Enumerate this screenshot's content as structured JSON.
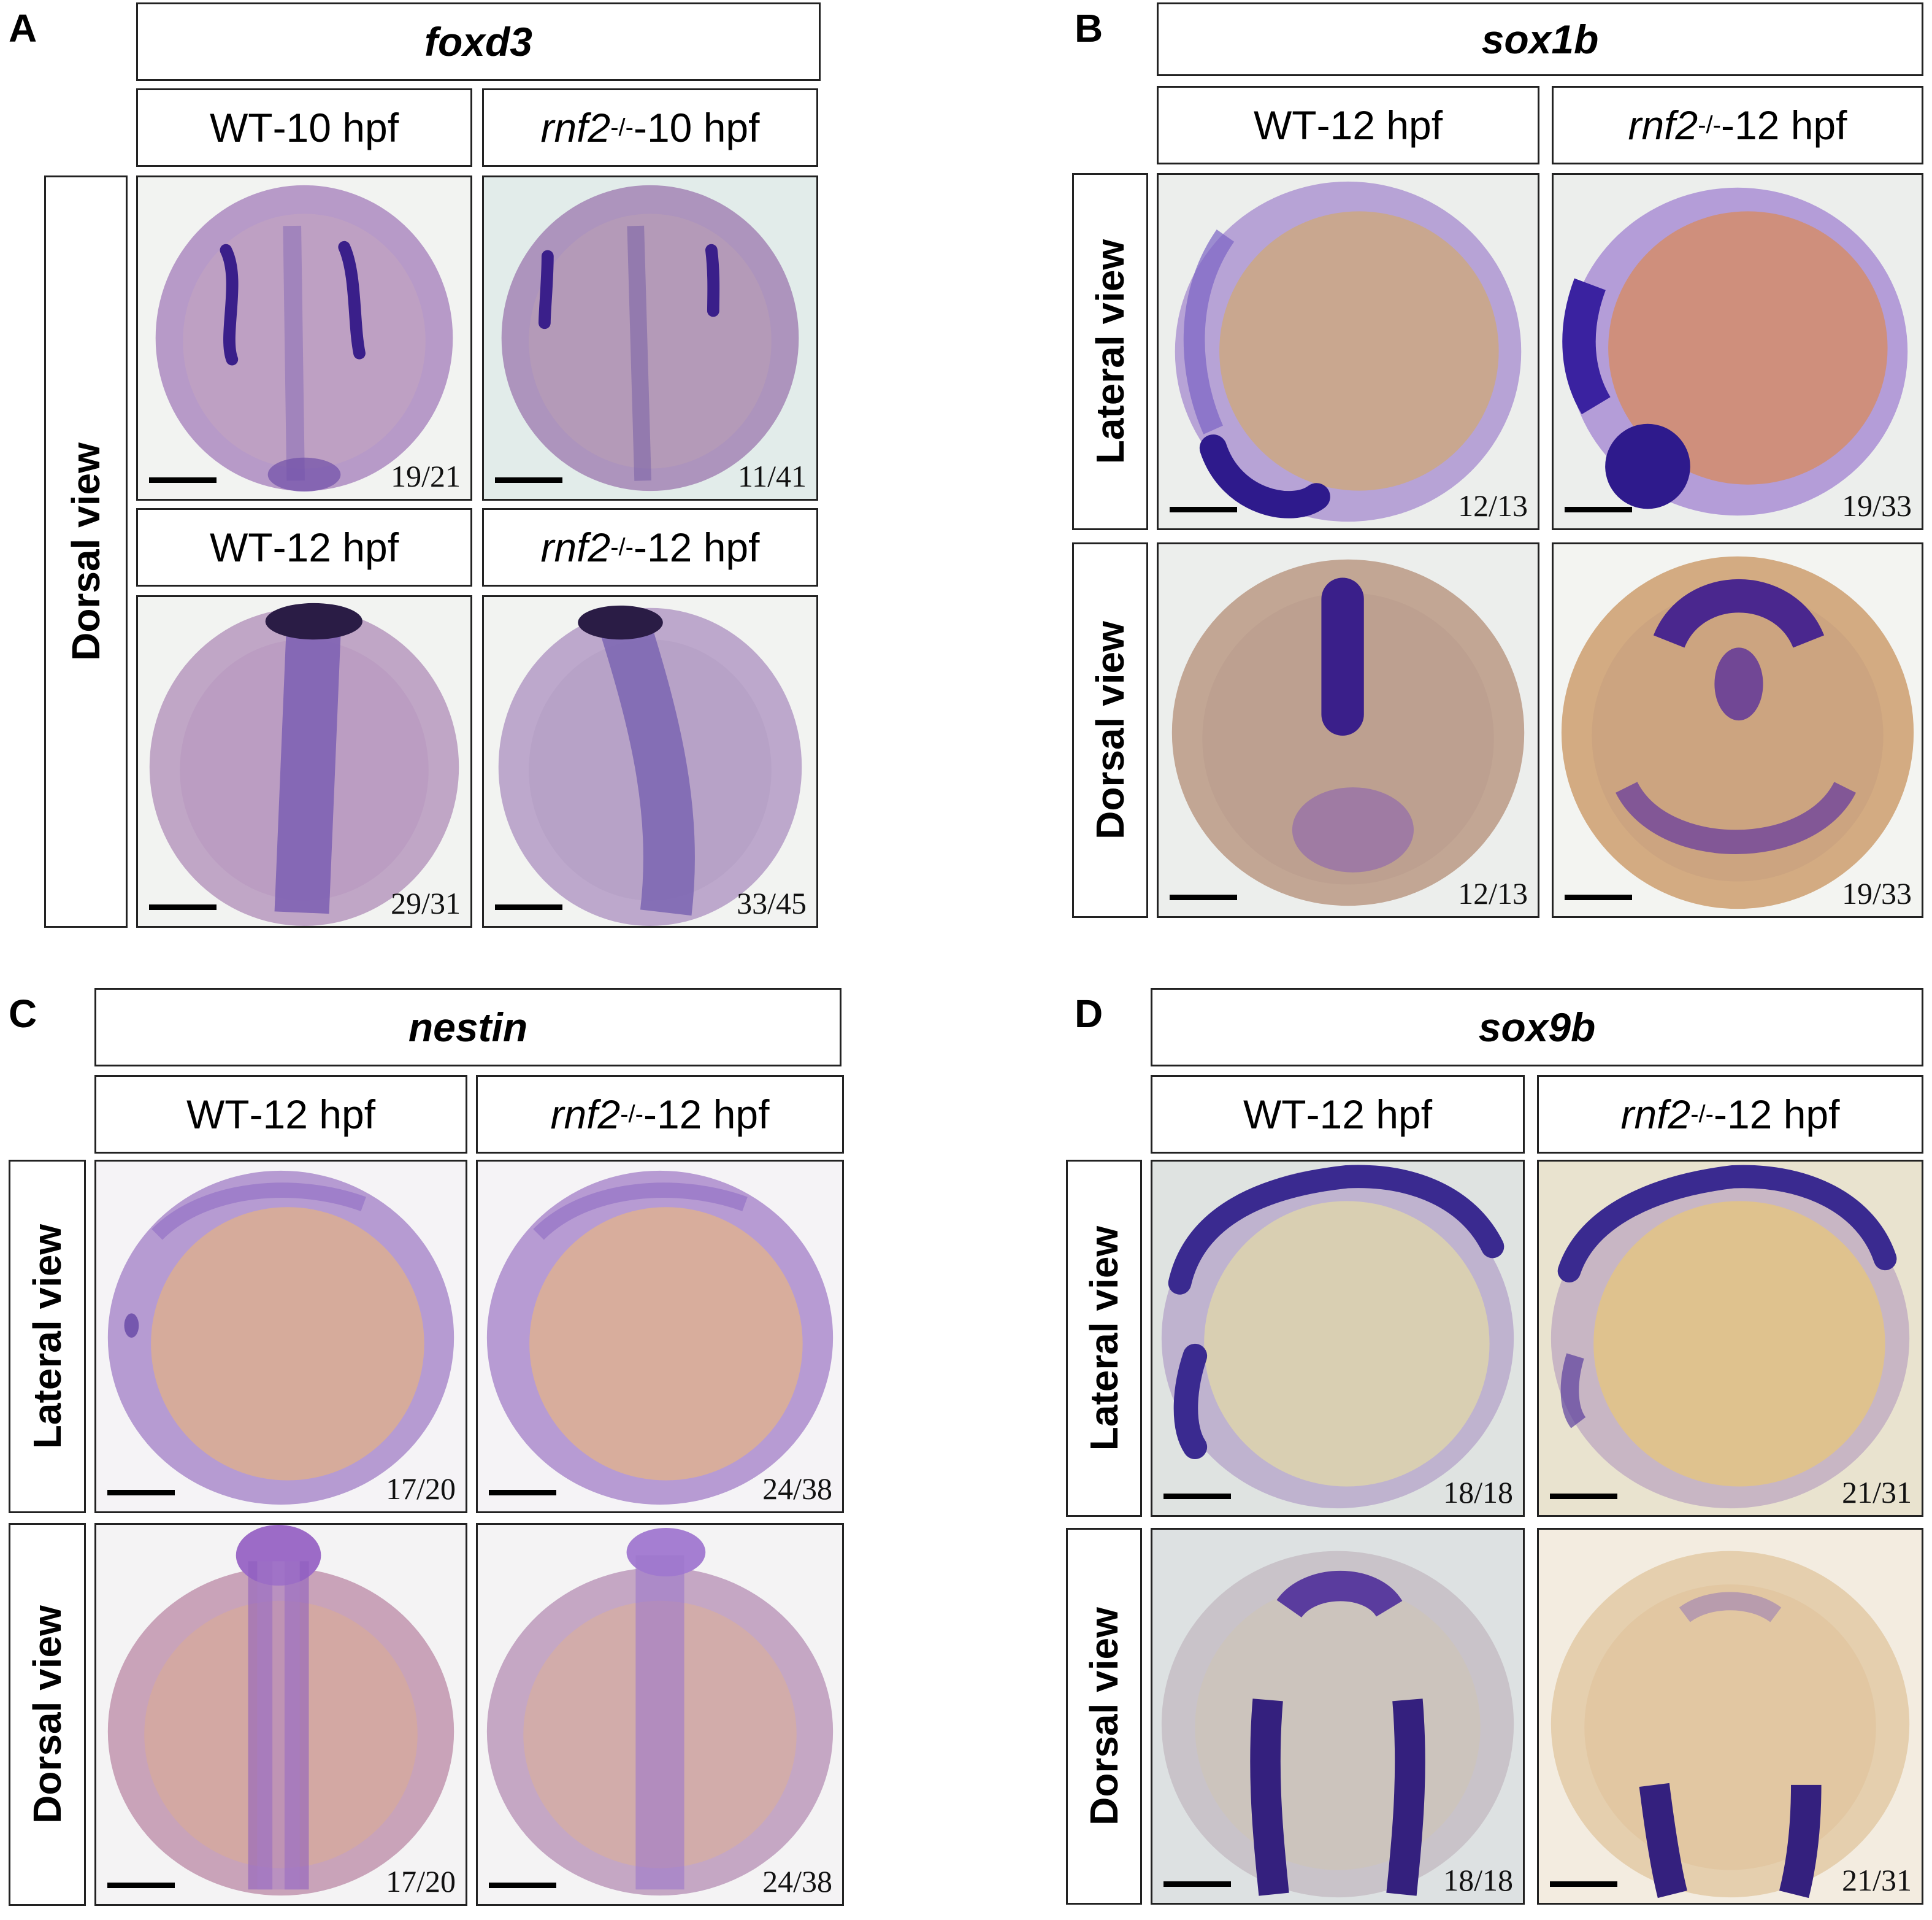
{
  "panels": {
    "A": {
      "letter": "A",
      "gene": "foxd3",
      "col1": {
        "prefix": "WT",
        "stage": "-10 hpf"
      },
      "col2": {
        "gene": "rnf2",
        "sup": "-/-",
        "stage": "-10 hpf"
      },
      "col3": {
        "prefix": "WT",
        "stage": "-12 hpf"
      },
      "col4": {
        "gene": "rnf2",
        "sup": "-/-",
        "stage": "-12 hpf"
      },
      "side": "Dorsal view",
      "counts": [
        "19/21",
        "11/41",
        "29/31",
        "33/45"
      ]
    },
    "B": {
      "letter": "B",
      "gene": "sox1b",
      "col1": {
        "prefix": "WT",
        "stage": "-12 hpf"
      },
      "col2": {
        "gene": "rnf2",
        "sup": "-/-",
        "stage": "-12 hpf"
      },
      "side_top": "Lateral view",
      "side_bottom": "Dorsal view",
      "counts": [
        "12/13",
        "19/33",
        "12/13",
        "19/33"
      ]
    },
    "C": {
      "letter": "C",
      "gene": "nestin",
      "col1": {
        "prefix": "WT",
        "stage": "-12 hpf"
      },
      "col2": {
        "gene": "rnf2",
        "sup": "-/-",
        "stage": "-12 hpf"
      },
      "side_top": "Lateral view",
      "side_bottom": "Dorsal view",
      "counts": [
        "17/20",
        "24/38",
        "17/20",
        "24/38"
      ]
    },
    "D": {
      "letter": "D",
      "gene": "sox9b",
      "col1": {
        "prefix": "WT",
        "stage": "-12 hpf"
      },
      "col2": {
        "gene": "rnf2",
        "sup": "-/-",
        "stage": "-12 hpf"
      },
      "side_top": "Lateral view",
      "side_bottom": "Dorsal view",
      "counts": [
        "18/18",
        "21/31",
        "18/18",
        "21/31"
      ]
    }
  },
  "colors": {
    "stain": "#3a1f8a",
    "embryo_wt": "#b79ac8",
    "embryo_yolk": "#d8a98e",
    "background_grey": "#e9ecea"
  }
}
